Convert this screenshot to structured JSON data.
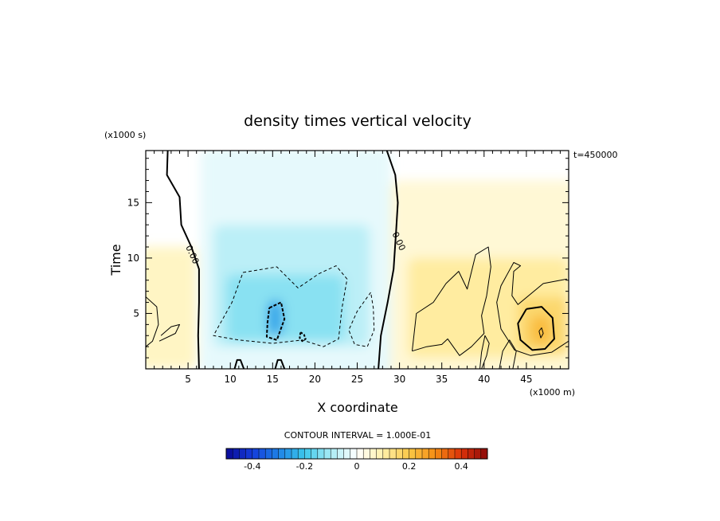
{
  "chart_data": {
    "type": "heatmap",
    "title": "density times vertical velocity",
    "xlabel": "X coordinate",
    "ylabel": "Time",
    "x_scale_label": "(x1000 m)",
    "y_scale_label": "(x1000 s)",
    "time_stamp": "t=450000",
    "xlim": [
      0,
      50
    ],
    "ylim": [
      0,
      19.7
    ],
    "x_ticks": [
      5,
      10,
      15,
      20,
      25,
      30,
      35,
      40,
      45
    ],
    "y_ticks": [
      5,
      10,
      15
    ],
    "contour_interval_text": "CONTOUR INTERVAL = 1.000E-01",
    "contour_levels": [
      -0.1,
      0.0,
      0.1,
      0.2
    ],
    "zero_contour_label": "0.00",
    "colorbar": {
      "range": [
        -0.5,
        0.5
      ],
      "tick_values": [
        -0.4,
        -0.2,
        0,
        0.2,
        0.4
      ],
      "tick_labels": [
        "-0.4",
        "-0.2",
        "0",
        "0.2",
        "0.4"
      ]
    },
    "features": [
      {
        "name": "negative region west",
        "x_range": [
          6.5,
          29
        ],
        "t_range": [
          0,
          19.7
        ],
        "min_value": -0.25,
        "min_at": [
          15.2,
          4.5
        ]
      },
      {
        "name": "positive region west edge",
        "x_range": [
          0,
          6
        ],
        "t_range": [
          0,
          11
        ],
        "max_value": 0.12,
        "max_at": [
          2,
          6
        ]
      },
      {
        "name": "positive region east",
        "x_range": [
          29,
          50
        ],
        "t_range": [
          0,
          17
        ],
        "max_value": 0.23,
        "max_at": [
          46.5,
          3.5
        ]
      }
    ]
  }
}
